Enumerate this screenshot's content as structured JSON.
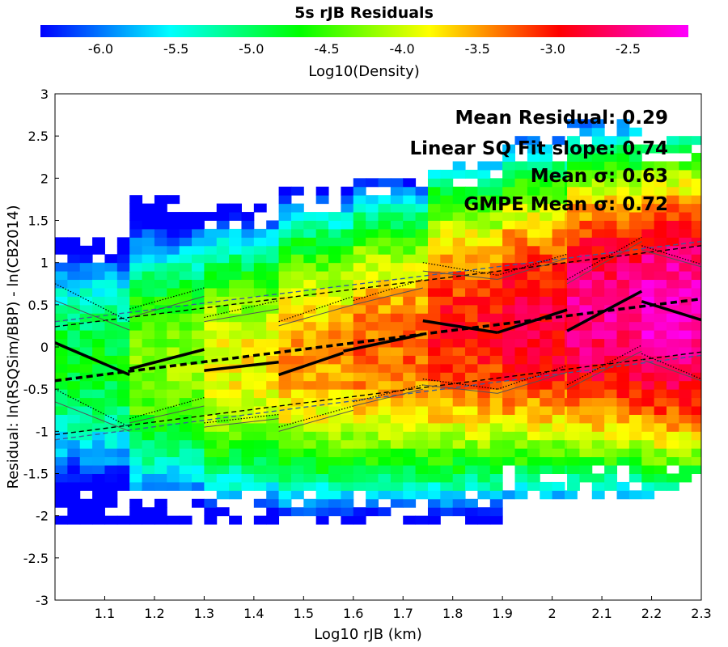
{
  "chart_data": {
    "type": "heatmap",
    "title": "5s rJB Residuals",
    "colorbar": {
      "label": "Log10(Density)",
      "range": [
        -6.4,
        -2.1
      ],
      "ticks": [
        -6.0,
        -5.5,
        -5.0,
        -4.5,
        -4.0,
        -3.5,
        -3.0,
        -2.5
      ],
      "tick_labels": [
        "-6.0",
        "-5.5",
        "-5.0",
        "-4.5",
        "-4.0",
        "-3.5",
        "-3.0",
        "-2.5"
      ],
      "colormap": [
        "#0000ff",
        "#00ffff",
        "#00ff00",
        "#ffff00",
        "#ff0000",
        "#ff00ff"
      ]
    },
    "xlabel": "Log10 rJB (km)",
    "ylabel": "Residual: ln(RSQSim/BBP) - ln(CB2014)",
    "xlim": [
      1.0,
      2.3
    ],
    "ylim": [
      -3,
      3
    ],
    "xticks": [
      1.1,
      1.2,
      1.3,
      1.4,
      1.5,
      1.6,
      1.7,
      1.8,
      1.9,
      2.0,
      2.1,
      2.2,
      2.3
    ],
    "xtick_labels": [
      "1.1",
      "1.2",
      "1.3",
      "1.4",
      "1.5",
      "1.6",
      "1.7",
      "1.8",
      "1.9",
      "2",
      "2.1",
      "2.2",
      "2.3"
    ],
    "yticks": [
      -3,
      -2.5,
      -2,
      -1.5,
      -1,
      -0.5,
      0,
      0.5,
      1,
      1.5,
      2,
      2.5,
      3
    ],
    "ytick_labels": [
      "-3",
      "-2.5",
      "-2",
      "-1.5",
      "-1",
      "-0.5",
      "0",
      "0.5",
      "1",
      "1.5",
      "2",
      "2.5",
      "3"
    ],
    "annotations": [
      "Mean Residual: 0.29",
      "Linear SQ Fit slope: 0.74",
      "Mean σ: 0.63",
      "GMPE Mean σ: 0.72"
    ],
    "density_field": {
      "columns": [
        {
          "x": [
            1.0,
            1.15
          ],
          "y_range": [
            -2.1,
            1.3
          ],
          "center_y": -0.2,
          "peak": -4.8,
          "spread": 0.9
        },
        {
          "x": [
            1.15,
            1.3
          ],
          "y_range": [
            -2.1,
            1.8
          ],
          "center_y": -0.2,
          "peak": -4.2,
          "spread": 0.95
        },
        {
          "x": [
            1.3,
            1.45
          ],
          "y_range": [
            -2.1,
            1.7
          ],
          "center_y": -0.2,
          "peak": -3.8,
          "spread": 0.95
        },
        {
          "x": [
            1.45,
            1.6
          ],
          "y_range": [
            -2.1,
            1.9
          ],
          "center_y": -0.1,
          "peak": -3.5,
          "spread": 1.0
        },
        {
          "x": [
            1.6,
            1.75
          ],
          "y_range": [
            -2.1,
            2.0
          ],
          "center_y": 0.0,
          "peak": -3.3,
          "spread": 1.0
        },
        {
          "x": [
            1.75,
            1.9
          ],
          "y_range": [
            -2.1,
            2.2
          ],
          "center_y": 0.2,
          "peak": -3.0,
          "spread": 1.05
        },
        {
          "x": [
            1.9,
            2.03
          ],
          "y_range": [
            -1.8,
            2.5
          ],
          "center_y": 0.3,
          "peak": -2.8,
          "spread": 1.05
        },
        {
          "x": [
            2.03,
            2.18
          ],
          "y_range": [
            -1.8,
            2.7
          ],
          "center_y": 0.4,
          "peak": -2.5,
          "spread": 1.05
        },
        {
          "x": [
            2.18,
            2.3
          ],
          "y_range": [
            -1.8,
            2.5
          ],
          "center_y": 0.4,
          "peak": -2.3,
          "spread": 1.05
        }
      ]
    },
    "series": [
      {
        "style": "solid-thick",
        "color": "#000000",
        "segments": [
          [
            [
              1.0,
              0.05
            ],
            [
              1.15,
              -0.33
            ]
          ],
          [
            [
              1.15,
              -0.26
            ],
            [
              1.3,
              -0.03
            ]
          ],
          [
            [
              1.3,
              -0.28
            ],
            [
              1.45,
              -0.18
            ]
          ],
          [
            [
              1.45,
              -0.33
            ],
            [
              1.58,
              -0.07
            ]
          ],
          [
            [
              1.58,
              -0.05
            ],
            [
              1.74,
              0.15
            ]
          ],
          [
            [
              1.74,
              0.31
            ],
            [
              1.89,
              0.17
            ]
          ],
          [
            [
              1.89,
              0.17
            ],
            [
              2.03,
              0.44
            ]
          ],
          [
            [
              2.03,
              0.19
            ],
            [
              2.18,
              0.66
            ]
          ],
          [
            [
              2.18,
              0.54
            ],
            [
              2.3,
              0.32
            ]
          ]
        ]
      },
      {
        "style": "dashed-thick",
        "color": "#000000",
        "points": [
          [
            1.0,
            -0.4
          ],
          [
            2.3,
            0.57
          ]
        ]
      },
      {
        "style": "dashed-thin",
        "color": "#000000",
        "lines": [
          [
            [
              1.0,
              0.24
            ],
            [
              2.3,
              1.2
            ]
          ],
          [
            [
              1.0,
              -1.04
            ],
            [
              2.3,
              -0.06
            ]
          ]
        ]
      },
      {
        "style": "dashed-thin",
        "color": "#3a5f9a",
        "lines": [
          [
            [
              1.0,
              0.3
            ],
            [
              2.3,
              1.25
            ]
          ],
          [
            [
              1.0,
              -1.1
            ],
            [
              2.3,
              -0.1
            ]
          ]
        ]
      },
      {
        "style": "dotted-thin",
        "color": "#000000",
        "segments": [
          [
            [
              1.0,
              0.75
            ],
            [
              1.15,
              0.3
            ]
          ],
          [
            [
              1.15,
              0.45
            ],
            [
              1.3,
              0.7
            ]
          ],
          [
            [
              1.3,
              0.35
            ],
            [
              1.45,
              0.55
            ]
          ],
          [
            [
              1.45,
              0.3
            ],
            [
              1.6,
              0.6
            ]
          ],
          [
            [
              1.6,
              0.55
            ],
            [
              1.74,
              0.8
            ]
          ],
          [
            [
              1.74,
              1.0
            ],
            [
              1.89,
              0.85
            ]
          ],
          [
            [
              1.89,
              0.85
            ],
            [
              2.03,
              1.1
            ]
          ],
          [
            [
              2.03,
              0.8
            ],
            [
              2.18,
              1.3
            ]
          ],
          [
            [
              2.18,
              1.2
            ],
            [
              2.3,
              0.98
            ]
          ],
          [
            [
              1.0,
              -0.5
            ],
            [
              1.15,
              -0.95
            ]
          ],
          [
            [
              1.15,
              -0.85
            ],
            [
              1.3,
              -0.6
            ]
          ],
          [
            [
              1.3,
              -0.9
            ],
            [
              1.45,
              -0.8
            ]
          ],
          [
            [
              1.45,
              -0.95
            ],
            [
              1.6,
              -0.7
            ]
          ],
          [
            [
              1.6,
              -0.65
            ],
            [
              1.74,
              -0.45
            ]
          ],
          [
            [
              1.74,
              -0.38
            ],
            [
              1.89,
              -0.5
            ]
          ],
          [
            [
              1.89,
              -0.5
            ],
            [
              2.03,
              -0.22
            ]
          ],
          [
            [
              2.03,
              -0.45
            ],
            [
              2.18,
              0.02
            ]
          ],
          [
            [
              2.18,
              -0.08
            ],
            [
              2.3,
              -0.38
            ]
          ]
        ]
      },
      {
        "style": "solid-thin",
        "color": "#555555",
        "segments": [
          [
            [
              1.0,
              0.55
            ],
            [
              1.15,
              0.2
            ]
          ],
          [
            [
              1.15,
              0.35
            ],
            [
              1.3,
              0.6
            ]
          ],
          [
            [
              1.3,
              0.3
            ],
            [
              1.45,
              0.45
            ]
          ],
          [
            [
              1.45,
              0.25
            ],
            [
              1.6,
              0.5
            ]
          ],
          [
            [
              1.6,
              0.5
            ],
            [
              1.74,
              0.7
            ]
          ],
          [
            [
              1.74,
              0.9
            ],
            [
              1.89,
              0.8
            ]
          ],
          [
            [
              1.89,
              0.8
            ],
            [
              2.03,
              1.05
            ]
          ],
          [
            [
              2.03,
              0.75
            ],
            [
              2.18,
              1.25
            ]
          ],
          [
            [
              2.18,
              1.15
            ],
            [
              2.3,
              0.95
            ]
          ],
          [
            [
              1.0,
              -0.65
            ],
            [
              1.15,
              -1.0
            ]
          ],
          [
            [
              1.15,
              -0.9
            ],
            [
              1.3,
              -0.7
            ]
          ],
          [
            [
              1.3,
              -0.95
            ],
            [
              1.45,
              -0.85
            ]
          ],
          [
            [
              1.45,
              -1.0
            ],
            [
              1.6,
              -0.75
            ]
          ],
          [
            [
              1.6,
              -0.7
            ],
            [
              1.74,
              -0.5
            ]
          ],
          [
            [
              1.74,
              -0.45
            ],
            [
              1.89,
              -0.55
            ]
          ],
          [
            [
              1.89,
              -0.55
            ],
            [
              2.03,
              -0.3
            ]
          ],
          [
            [
              2.03,
              -0.5
            ],
            [
              2.18,
              -0.05
            ]
          ],
          [
            [
              2.18,
              -0.15
            ],
            [
              2.3,
              -0.4
            ]
          ]
        ]
      }
    ]
  }
}
